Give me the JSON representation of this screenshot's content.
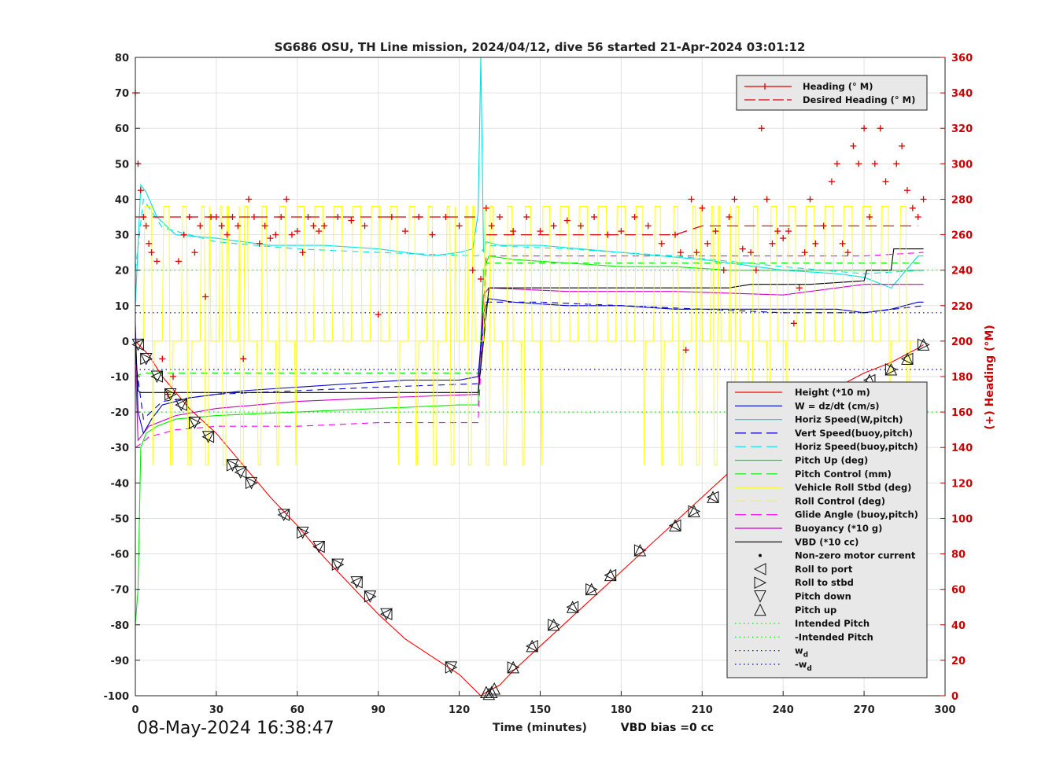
{
  "chart_data": {
    "type": "line",
    "title": "SG686 OSU, TH Line mission, 2024/04/12, dive 56 started 21-Apr-2024 03:01:12",
    "xlabel": "Time (minutes)",
    "ylabel_right": "(+) Heading (°M)",
    "footer_note": "VBD bias =0 cc",
    "timestamp": "08-May-2024 16:38:47",
    "xlim": [
      0,
      300
    ],
    "ylim_left": [
      -100,
      80
    ],
    "ylim_right": [
      0,
      360
    ],
    "xticks": [
      "0",
      "30",
      "60",
      "90",
      "120",
      "150",
      "180",
      "210",
      "240",
      "270",
      "300"
    ],
    "yticks_left": [
      "80",
      "70",
      "60",
      "50",
      "40",
      "30",
      "20",
      "10",
      "0",
      "-10",
      "-20",
      "-30",
      "-40",
      "-50",
      "-60",
      "-70",
      "-80",
      "-90",
      "-100"
    ],
    "yticks_right": [
      "360",
      "340",
      "320",
      "300",
      "280",
      "260",
      "240",
      "220",
      "200",
      "180",
      "160",
      "140",
      "120",
      "100",
      "80",
      "60",
      "40",
      "20",
      "0"
    ],
    "grid": true,
    "colors": {
      "height": "#ff0000",
      "w": "#0000cc",
      "horiz_w": "#00e0e0",
      "pitch": "#00ee00",
      "roll": "#ffff00",
      "glide": "#ff00ff",
      "buoyancy": "#cc00cc",
      "vbd": "#000000",
      "heading": "#dd0000",
      "right_axis": "#cc0000"
    },
    "legend_top": {
      "placement": "top-right",
      "entries": [
        {
          "label": "Heading (° M)",
          "marker": "plus",
          "color": "#dd0000"
        },
        {
          "label": "Desired Heading (° M)",
          "marker": "line",
          "color": "#dd0000"
        }
      ]
    },
    "legend_main": {
      "placement": "bottom-right",
      "entries": [
        {
          "label": "Height (*10 m)",
          "style": "solid",
          "color": "#ff0000"
        },
        {
          "label": "W = dz/dt (cm/s)",
          "style": "solid",
          "color": "#0000cc"
        },
        {
          "label": "Horiz Speed(W,pitch)",
          "style": "solid",
          "color": "#00e0e0"
        },
        {
          "label": "Vert Speed(buoy,pitch)",
          "style": "dashed",
          "color": "#0000cc"
        },
        {
          "label": "Horiz Speed(buoy,pitch)",
          "style": "dashed",
          "color": "#00e0e0"
        },
        {
          "label": "Pitch Up (deg)",
          "style": "solid",
          "color": "#00ee00"
        },
        {
          "label": "Pitch Control (mm)",
          "style": "dashed",
          "color": "#00ee00"
        },
        {
          "label": "Vehicle Roll Stbd (deg)",
          "style": "solid",
          "color": "#ffff00"
        },
        {
          "label": "Roll Control (deg)",
          "style": "dashed",
          "color": "#ffff00"
        },
        {
          "label": "Glide Angle (buoy,pitch)",
          "style": "dashed",
          "color": "#ff00ff"
        },
        {
          "label": "Buoyancy (*10 g)",
          "style": "solid",
          "color": "#cc00cc"
        },
        {
          "label": "VBD (*10 cc)",
          "style": "solid",
          "color": "#000000"
        },
        {
          "label": "Non-zero motor current",
          "style": "dot",
          "color": "#000000"
        },
        {
          "label": "Roll to port",
          "style": "tri-left",
          "color": "#000000"
        },
        {
          "label": "Roll to stbd",
          "style": "tri-right",
          "color": "#000000"
        },
        {
          "label": "Pitch down",
          "style": "tri-down",
          "color": "#000000"
        },
        {
          "label": "Pitch up",
          "style": "tri-up",
          "color": "#000000"
        },
        {
          "label": "Intended Pitch",
          "style": "dotted",
          "color": "#00ee00"
        },
        {
          "label": "-Intended Pitch",
          "style": "dotted",
          "color": "#00ee00"
        },
        {
          "label": "w_d",
          "style": "dotted",
          "color": "#0000cc"
        },
        {
          "label": "-w_d",
          "style": "dotted",
          "color": "#0000cc"
        }
      ]
    },
    "reference_lines": [
      {
        "name": "Intended Pitch",
        "y": 20,
        "color": "#00ee00"
      },
      {
        "name": "-Intended Pitch",
        "y": -20,
        "color": "#00ee00"
      },
      {
        "name": "w_d",
        "y": 8,
        "color": "#0000cc"
      },
      {
        "name": "-w_d",
        "y": -8,
        "color": "#0000cc"
      }
    ],
    "series": [
      {
        "key": "height",
        "style": "solid",
        "x": [
          0,
          5,
          10,
          20,
          30,
          40,
          50,
          60,
          70,
          80,
          90,
          100,
          110,
          120,
          128,
          130,
          135,
          140,
          150,
          160,
          170,
          180,
          190,
          200,
          210,
          220,
          230,
          240,
          250,
          260,
          270,
          280,
          290,
          292
        ],
        "y": [
          0,
          -4,
          -10,
          -19,
          -26,
          -35,
          -44,
          -52,
          -61,
          -69,
          -77,
          -84,
          -89,
          -94,
          -100,
          -99,
          -97,
          -93,
          -86,
          -79,
          -72,
          -65,
          -58,
          -51,
          -44,
          -37,
          -30,
          -23,
          -16,
          -13,
          -9,
          -6,
          -2,
          -1
        ]
      },
      {
        "key": "w",
        "style": "solid",
        "x": [
          0,
          1,
          3,
          6,
          10,
          20,
          40,
          60,
          80,
          100,
          120,
          127,
          129,
          131,
          140,
          160,
          180,
          200,
          220,
          240,
          260,
          270,
          280,
          290,
          292
        ],
        "y": [
          5,
          -20,
          -26,
          -22,
          -18,
          -16,
          -14,
          -13,
          -12,
          -11,
          -11,
          -10,
          8,
          12,
          11,
          10,
          10,
          9,
          9,
          9,
          9,
          8,
          9,
          11,
          11
        ]
      },
      {
        "key": "w_buoy",
        "style": "dashed",
        "x": [
          0,
          3,
          10,
          30,
          60,
          90,
          127,
          130,
          150,
          180,
          210,
          240,
          270,
          292
        ],
        "y": [
          -5,
          -22,
          -17,
          -15,
          -14,
          -13,
          -12,
          11,
          11,
          10,
          9,
          8,
          8,
          10
        ]
      },
      {
        "key": "horiz_w",
        "style": "solid",
        "x": [
          0,
          2,
          4,
          8,
          15,
          30,
          50,
          70,
          90,
          110,
          120,
          125,
          127,
          128,
          129,
          130,
          135,
          150,
          180,
          210,
          240,
          260,
          270,
          280,
          290,
          292
        ],
        "y": [
          10,
          44,
          42,
          35,
          30,
          29,
          27,
          27,
          26,
          24,
          25,
          26,
          36,
          80,
          25,
          28,
          27,
          27,
          25,
          23,
          20,
          19,
          18,
          15,
          24,
          24
        ]
      },
      {
        "key": "horiz_buoy",
        "style": "dashed",
        "x": [
          0,
          3,
          10,
          30,
          60,
          90,
          127,
          130,
          160,
          200,
          240,
          270,
          292
        ],
        "y": [
          20,
          40,
          32,
          28,
          26,
          25,
          24,
          27,
          26,
          24,
          21,
          19,
          20
        ]
      },
      {
        "key": "pitch",
        "style": "solid",
        "x": [
          0,
          1,
          2,
          4,
          8,
          15,
          30,
          60,
          90,
          120,
          127,
          129,
          131,
          140,
          160,
          180,
          200,
          220,
          240,
          260,
          280,
          292
        ],
        "y": [
          -80,
          -70,
          -30,
          -26,
          -24,
          -22,
          -21,
          -20,
          -19,
          -18,
          -18,
          20,
          24,
          23,
          22,
          21,
          21,
          20,
          20,
          20,
          20,
          20
        ],
        "note": "pitch"
      },
      {
        "key": "pitch_ctrl",
        "style": "dashed",
        "x": [
          0,
          3,
          10,
          127,
          129,
          130,
          200,
          260,
          292
        ],
        "y": [
          -10,
          -9,
          -9,
          -9,
          0,
          22,
          22,
          22,
          22
        ]
      },
      {
        "key": "glide",
        "style": "dashed",
        "x": [
          0,
          2,
          5,
          15,
          30,
          60,
          90,
          127,
          130,
          150,
          180,
          210,
          240,
          270,
          292
        ],
        "y": [
          -30,
          -29,
          -27,
          -25,
          -24,
          -24,
          -23,
          -23,
          24,
          24,
          24,
          24,
          24,
          24,
          25
        ]
      },
      {
        "key": "buoyancy",
        "style": "solid",
        "x": [
          0,
          1,
          5,
          15,
          30,
          60,
          90,
          127,
          129,
          131,
          160,
          200,
          240,
          270,
          292
        ],
        "y": [
          -5,
          -28,
          -24,
          -21,
          -19,
          -17,
          -16,
          -15,
          13,
          15,
          14,
          14,
          13,
          16,
          16
        ]
      },
      {
        "key": "vbd",
        "style": "solid",
        "x": [
          0,
          1,
          2,
          127,
          129,
          131,
          160,
          220,
          228,
          250,
          270,
          271,
          280,
          281,
          292
        ],
        "y": [
          0,
          -14,
          -14.5,
          -14.5,
          0,
          15,
          15,
          15,
          16,
          16,
          17,
          20,
          20,
          26,
          26
        ]
      }
    ],
    "heading_samples": {
      "x": [
        0,
        1,
        2,
        3,
        4,
        5,
        6,
        8,
        10,
        12,
        14,
        16,
        18,
        20,
        22,
        24,
        26,
        28,
        30,
        32,
        34,
        36,
        38,
        40,
        42,
        44,
        46,
        48,
        50,
        52,
        54,
        56,
        58,
        60,
        62,
        64,
        66,
        68,
        70,
        75,
        80,
        85,
        90,
        95,
        100,
        105,
        110,
        115,
        120,
        125,
        128,
        130,
        132,
        135,
        140,
        145,
        150,
        155,
        160,
        165,
        170,
        175,
        180,
        185,
        190,
        195,
        200,
        202,
        204,
        206,
        208,
        210,
        212,
        215,
        218,
        220,
        222,
        225,
        228,
        230,
        232,
        234,
        236,
        238,
        240,
        242,
        244,
        246,
        248,
        250,
        252,
        255,
        258,
        260,
        262,
        264,
        266,
        268,
        270,
        272,
        274,
        276,
        278,
        280,
        282,
        284,
        286,
        288,
        290,
        292
      ],
      "y": [
        340,
        300,
        285,
        270,
        265,
        255,
        250,
        245,
        190,
        170,
        180,
        245,
        260,
        270,
        250,
        265,
        225,
        270,
        270,
        265,
        260,
        270,
        265,
        190,
        280,
        270,
        255,
        265,
        258,
        260,
        270,
        280,
        260,
        262,
        250,
        270,
        265,
        262,
        265,
        270,
        268,
        265,
        215,
        270,
        262,
        270,
        260,
        270,
        265,
        240,
        235,
        275,
        265,
        270,
        262,
        270,
        262,
        265,
        268,
        265,
        270,
        260,
        262,
        270,
        265,
        255,
        260,
        250,
        195,
        280,
        250,
        275,
        255,
        262,
        240,
        270,
        280,
        252,
        250,
        240,
        320,
        280,
        255,
        262,
        258,
        262,
        210,
        230,
        250,
        280,
        255,
        265,
        290,
        300,
        255,
        250,
        310,
        300,
        320,
        270,
        300,
        320,
        290,
        345,
        300,
        310,
        285,
        275,
        270,
        280
      ]
    },
    "desired_heading": [
      {
        "x": [
          0,
          10,
          127
        ],
        "y": [
          270,
          270,
          270
        ]
      },
      {
        "x": [
          130,
          160,
          200,
          210,
          290
        ],
        "y": [
          260,
          260,
          260,
          265,
          265
        ]
      }
    ],
    "markers": {
      "descent_x": [
        1,
        4,
        8,
        13,
        17,
        22,
        27,
        36,
        39,
        43,
        55,
        62,
        68,
        75,
        82,
        87,
        93,
        117
      ],
      "descent_y": [
        -1,
        -5,
        -10,
        -15,
        -18,
        -23,
        -27,
        -35,
        -37,
        -40,
        -49,
        -54,
        -58,
        -63,
        -68,
        -72,
        -77,
        -92
      ],
      "bottom_x": [
        130,
        131,
        132,
        133
      ],
      "bottom_y": [
        -99,
        -99.5,
        -99,
        -98
      ],
      "ascent_x": [
        140,
        147,
        155,
        162,
        169,
        176,
        187,
        200,
        207,
        214,
        222,
        228,
        231,
        239,
        246,
        252,
        258,
        262,
        267,
        272,
        280,
        286,
        292
      ],
      "ascent_y": [
        -92,
        -86,
        -80,
        -75,
        -70,
        -66,
        -59,
        -52,
        -48,
        -44,
        -40,
        -37,
        -34,
        -30,
        -27,
        -24,
        -20,
        -17,
        -14,
        -11,
        -8,
        -5,
        -1
      ]
    }
  }
}
